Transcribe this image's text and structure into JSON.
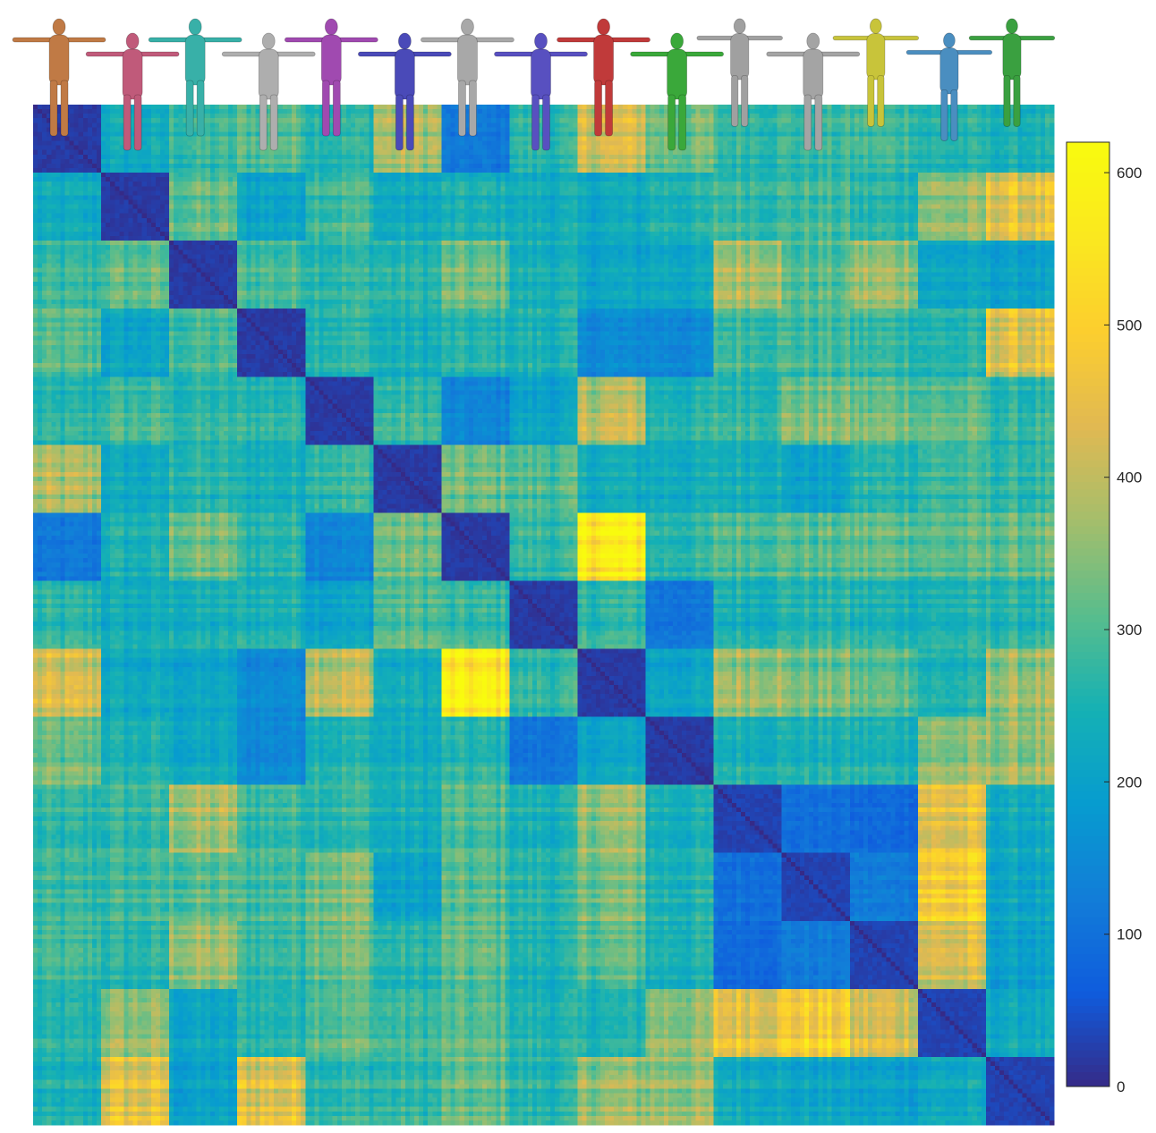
{
  "chart_data": {
    "type": "heatmap",
    "title": "",
    "xlabel": "",
    "ylabel": "",
    "n_blocks": 15,
    "samples_per_block": 15,
    "block_figure_colors": [
      "#c07a45",
      "#c05a7a",
      "#38b0a8",
      "#aeaeae",
      "#a04ab0",
      "#4a4ab8",
      "#a8a8a8",
      "#5850c0",
      "#c03a3a",
      "#3aa83a",
      "#a0a0a0",
      "#a4a4a4",
      "#c8c43a",
      "#4a8ec0",
      "#3aa040"
    ],
    "block_means": [
      [
        20,
        220,
        270,
        300,
        260,
        370,
        110,
        260,
        410,
        320,
        270,
        270,
        280,
        250,
        240
      ],
      [
        220,
        20,
        310,
        210,
        290,
        220,
        240,
        230,
        220,
        250,
        280,
        280,
        260,
        350,
        440
      ],
      [
        270,
        310,
        20,
        290,
        270,
        260,
        320,
        240,
        210,
        220,
        380,
        300,
        360,
        210,
        200
      ],
      [
        300,
        210,
        290,
        20,
        270,
        240,
        260,
        250,
        150,
        150,
        290,
        290,
        280,
        260,
        440
      ],
      [
        260,
        290,
        270,
        270,
        20,
        280,
        140,
        210,
        400,
        260,
        280,
        340,
        330,
        310,
        270
      ],
      [
        370,
        220,
        260,
        240,
        280,
        20,
        320,
        300,
        230,
        230,
        240,
        200,
        260,
        280,
        270
      ],
      [
        110,
        240,
        320,
        260,
        140,
        320,
        20,
        270,
        560,
        260,
        300,
        300,
        310,
        300,
        310
      ],
      [
        260,
        230,
        240,
        250,
        210,
        300,
        270,
        20,
        270,
        110,
        250,
        260,
        250,
        250,
        260
      ],
      [
        410,
        220,
        210,
        150,
        400,
        230,
        560,
        270,
        20,
        210,
        370,
        330,
        310,
        250,
        360
      ],
      [
        320,
        250,
        220,
        150,
        260,
        230,
        260,
        110,
        210,
        20,
        250,
        250,
        250,
        350,
        360
      ],
      [
        270,
        280,
        380,
        290,
        280,
        240,
        300,
        250,
        370,
        250,
        30,
        100,
        90,
        450,
        230
      ],
      [
        270,
        280,
        300,
        290,
        340,
        200,
        300,
        260,
        330,
        250,
        100,
        30,
        120,
        480,
        210
      ],
      [
        280,
        260,
        360,
        280,
        330,
        260,
        310,
        250,
        310,
        250,
        90,
        120,
        30,
        420,
        200
      ],
      [
        250,
        350,
        210,
        260,
        310,
        280,
        300,
        250,
        250,
        350,
        450,
        480,
        420,
        30,
        220
      ],
      [
        240,
        440,
        200,
        440,
        270,
        270,
        310,
        260,
        360,
        360,
        230,
        210,
        200,
        220,
        30
      ]
    ],
    "zlim": [
      0,
      620
    ],
    "colormap": "parula",
    "colorbar": {
      "ticks": [
        0,
        100,
        200,
        300,
        400,
        500,
        600
      ],
      "tick_labels": [
        "0",
        "100",
        "200",
        "300",
        "400",
        "500",
        "600"
      ],
      "placement": "right"
    },
    "grid": false,
    "legend": "none"
  }
}
